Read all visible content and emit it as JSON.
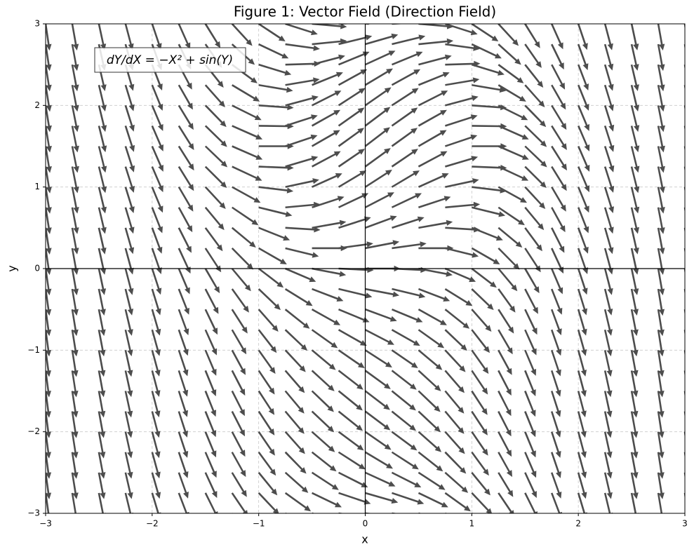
{
  "chart_data": {
    "type": "quiver",
    "title": "Figure 1: Vector Field (Direction Field)",
    "xlabel": "x",
    "ylabel": "y",
    "annotation": "dY/dX = −X² + sin(Y)",
    "color": "#4d4d4d",
    "grid": true,
    "xlim": [
      -3,
      3
    ],
    "ylim": [
      -3,
      3
    ],
    "xticks": [
      {
        "value": -3,
        "label": "−3"
      },
      {
        "value": -2,
        "label": "−2"
      },
      {
        "value": -1,
        "label": "−1"
      },
      0,
      1,
      2,
      3
    ],
    "yticks": [
      {
        "value": -3,
        "label": "−3"
      },
      {
        "value": -2,
        "label": "−2"
      },
      {
        "value": -1,
        "label": "−1"
      },
      0,
      1,
      2,
      3
    ],
    "x": [
      -3,
      -2.75,
      -2.5,
      -2.25,
      -2,
      -1.75,
      -1.5,
      -1.25,
      -1,
      -0.75,
      -0.5,
      -0.25,
      0,
      0.25,
      0.5,
      0.75,
      1,
      1.25,
      1.5,
      1.75,
      2,
      2.25,
      2.5,
      2.75,
      3
    ],
    "y": [
      -3,
      -2.75,
      -2.5,
      -2.25,
      -2,
      -1.75,
      -1.5,
      -1.25,
      -1,
      -0.75,
      -0.5,
      -0.25,
      0,
      0.25,
      0.5,
      0.75,
      1,
      1.25,
      1.5,
      1.75,
      2,
      2.25,
      2.5,
      2.75,
      3
    ],
    "slopes": [
      [
        -9.14,
        -7.7,
        -6.39,
        -5.2,
        -4.14,
        -3.2,
        -2.39,
        -1.7,
        -1.14,
        -0.7,
        -0.39,
        -0.2,
        -0.14,
        -0.2,
        -0.39,
        -0.7,
        -1.14,
        -1.7,
        -2.39,
        -3.2,
        -4.14,
        -5.2,
        -6.39,
        -7.7,
        -9.14
      ],
      [
        -9.38,
        -7.94,
        -6.63,
        -5.44,
        -4.38,
        -3.44,
        -2.63,
        -1.94,
        -1.38,
        -0.94,
        -0.63,
        -0.44,
        -0.38,
        -0.44,
        -0.63,
        -0.94,
        -1.38,
        -1.94,
        -2.63,
        -3.44,
        -4.38,
        -5.44,
        -6.63,
        -7.94,
        -9.38
      ],
      [
        -9.6,
        -8.16,
        -6.85,
        -5.66,
        -4.6,
        -3.66,
        -2.85,
        -2.16,
        -1.6,
        -1.16,
        -0.85,
        -0.66,
        -0.6,
        -0.66,
        -0.85,
        -1.16,
        -1.6,
        -2.16,
        -2.85,
        -3.66,
        -4.6,
        -5.66,
        -6.85,
        -8.16,
        -9.6
      ],
      [
        -9.78,
        -8.34,
        -7.03,
        -5.84,
        -4.78,
        -3.84,
        -3.03,
        -2.34,
        -1.78,
        -1.34,
        -1.03,
        -0.84,
        -0.78,
        -0.84,
        -1.03,
        -1.34,
        -1.78,
        -2.34,
        -3.03,
        -3.84,
        -4.78,
        -5.84,
        -7.03,
        -8.34,
        -9.78
      ],
      [
        -9.91,
        -8.47,
        -7.16,
        -5.97,
        -4.91,
        -3.97,
        -3.16,
        -2.47,
        -1.91,
        -1.47,
        -1.16,
        -0.97,
        -0.91,
        -0.97,
        -1.16,
        -1.47,
        -1.91,
        -2.47,
        -3.16,
        -3.97,
        -4.91,
        -5.97,
        -7.16,
        -8.47,
        -9.91
      ],
      [
        -9.98,
        -8.55,
        -7.23,
        -6.05,
        -4.98,
        -4.05,
        -3.23,
        -2.55,
        -1.98,
        -1.55,
        -1.23,
        -1.05,
        -0.98,
        -1.05,
        -1.23,
        -1.55,
        -1.98,
        -2.55,
        -3.23,
        -4.05,
        -4.98,
        -6.05,
        -7.23,
        -8.55,
        -9.98
      ],
      [
        -10,
        -8.56,
        -7.25,
        -6.06,
        -5,
        -4.06,
        -3.25,
        -2.56,
        -2,
        -1.56,
        -1.25,
        -1.06,
        -1,
        -1.06,
        -1.25,
        -1.56,
        -2,
        -2.56,
        -3.25,
        -4.06,
        -5,
        -6.06,
        -7.25,
        -8.56,
        -10
      ],
      [
        -9.95,
        -8.51,
        -7.2,
        -6.01,
        -4.95,
        -4.01,
        -3.2,
        -2.51,
        -1.95,
        -1.51,
        -1.2,
        -1.01,
        -0.95,
        -1.01,
        -1.2,
        -1.51,
        -1.95,
        -2.51,
        -3.2,
        -4.01,
        -4.95,
        -6.01,
        -7.2,
        -8.51,
        -9.95
      ],
      [
        -9.84,
        -8.4,
        -7.09,
        -5.9,
        -4.84,
        -3.9,
        -3.09,
        -2.4,
        -1.84,
        -1.4,
        -1.09,
        -0.9,
        -0.84,
        -0.9,
        -1.09,
        -1.4,
        -1.84,
        -2.4,
        -3.09,
        -3.9,
        -4.84,
        -5.9,
        -7.09,
        -8.4,
        -9.84
      ],
      [
        -9.68,
        -8.24,
        -6.93,
        -5.74,
        -4.68,
        -3.74,
        -2.93,
        -2.24,
        -1.68,
        -1.24,
        -0.93,
        -0.74,
        -0.68,
        -0.74,
        -0.93,
        -1.24,
        -1.68,
        -2.24,
        -2.93,
        -3.74,
        -4.68,
        -5.74,
        -6.93,
        -8.24,
        -9.68
      ],
      [
        -9.48,
        -8.04,
        -6.73,
        -5.54,
        -4.48,
        -3.54,
        -2.73,
        -2.04,
        -1.48,
        -1.04,
        -0.73,
        -0.54,
        -0.48,
        -0.54,
        -0.73,
        -1.04,
        -1.48,
        -2.04,
        -2.73,
        -3.54,
        -4.48,
        -5.54,
        -6.73,
        -8.04,
        -9.48
      ],
      [
        -9.25,
        -7.81,
        -6.5,
        -5.31,
        -4.25,
        -3.31,
        -2.5,
        -1.81,
        -1.25,
        -0.81,
        -0.5,
        -0.31,
        -0.25,
        -0.31,
        -0.5,
        -0.81,
        -1.25,
        -1.81,
        -2.5,
        -3.31,
        -4.25,
        -5.31,
        -6.5,
        -7.81,
        -9.25
      ],
      [
        -9,
        -7.56,
        -6.25,
        -5.06,
        -4,
        -3.06,
        -2.25,
        -1.56,
        -1,
        -0.56,
        -0.25,
        -0.06,
        0,
        -0.06,
        -0.25,
        -0.56,
        -1,
        -1.56,
        -2.25,
        -3.06,
        -4,
        -5.06,
        -6.25,
        -7.56,
        -9
      ],
      [
        -8.75,
        -7.32,
        -6,
        -4.82,
        -3.75,
        -2.82,
        -2,
        -1.32,
        -0.75,
        -0.32,
        0,
        0.18,
        0.25,
        0.18,
        0,
        -0.32,
        -0.75,
        -1.32,
        -2,
        -2.82,
        -3.75,
        -4.82,
        -6,
        -7.32,
        -8.75
      ],
      [
        -8.52,
        -7.08,
        -5.77,
        -4.58,
        -3.52,
        -2.58,
        -1.77,
        -1.08,
        -0.52,
        -0.08,
        0.23,
        0.42,
        0.48,
        0.42,
        0.23,
        -0.08,
        -0.52,
        -1.08,
        -1.77,
        -2.58,
        -3.52,
        -4.58,
        -5.77,
        -7.08,
        -8.52
      ],
      [
        -8.32,
        -6.88,
        -5.57,
        -4.38,
        -3.32,
        -2.38,
        -1.57,
        -0.88,
        -0.32,
        0.12,
        0.43,
        0.62,
        0.68,
        0.62,
        0.43,
        0.12,
        -0.32,
        -0.88,
        -1.57,
        -2.38,
        -3.32,
        -4.38,
        -5.57,
        -6.88,
        -8.32
      ],
      [
        -8.16,
        -6.72,
        -5.41,
        -4.22,
        -3.16,
        -2.22,
        -1.41,
        -0.72,
        -0.16,
        0.28,
        0.59,
        0.78,
        0.84,
        0.78,
        0.59,
        0.28,
        -0.16,
        -0.72,
        -1.41,
        -2.22,
        -3.16,
        -4.22,
        -5.41,
        -6.72,
        -8.16
      ],
      [
        -8.05,
        -6.61,
        -5.3,
        -4.11,
        -3.05,
        -2.11,
        -1.3,
        -0.61,
        -0.05,
        0.39,
        0.7,
        0.89,
        0.95,
        0.89,
        0.7,
        0.39,
        -0.05,
        -0.61,
        -1.3,
        -2.11,
        -3.05,
        -4.11,
        -5.3,
        -6.61,
        -8.05
      ],
      [
        -8,
        -6.57,
        -5.25,
        -4.07,
        -3,
        -2.07,
        -1.25,
        -0.57,
        0,
        0.44,
        0.75,
        0.94,
        1,
        0.94,
        0.75,
        0.44,
        0,
        -0.57,
        -1.25,
        -2.07,
        -3,
        -4.07,
        -5.25,
        -6.57,
        -8
      ],
      [
        -8.02,
        -6.58,
        -5.27,
        -4.08,
        -3.02,
        -2.08,
        -1.27,
        -0.58,
        -0.02,
        0.42,
        0.73,
        0.92,
        0.98,
        0.92,
        0.73,
        0.42,
        -0.02,
        -0.58,
        -1.27,
        -2.08,
        -3.02,
        -4.08,
        -5.27,
        -6.58,
        -8.02
      ],
      [
        -8.09,
        -6.65,
        -5.34,
        -4.15,
        -3.09,
        -2.15,
        -1.34,
        -0.65,
        -0.09,
        0.35,
        0.66,
        0.85,
        0.91,
        0.85,
        0.66,
        0.35,
        -0.09,
        -0.65,
        -1.34,
        -2.15,
        -3.09,
        -4.15,
        -5.34,
        -6.65,
        -8.09
      ],
      [
        -8.22,
        -6.78,
        -5.47,
        -4.28,
        -3.22,
        -2.28,
        -1.47,
        -0.78,
        -0.22,
        0.22,
        0.53,
        0.72,
        0.78,
        0.72,
        0.53,
        0.22,
        -0.22,
        -0.78,
        -1.47,
        -2.28,
        -3.22,
        -4.28,
        -5.47,
        -6.78,
        -8.22
      ],
      [
        -8.4,
        -6.96,
        -5.65,
        -4.46,
        -3.4,
        -2.46,
        -1.65,
        -0.96,
        -0.4,
        0.04,
        0.35,
        0.54,
        0.6,
        0.54,
        0.35,
        0.04,
        -0.4,
        -0.96,
        -1.65,
        -2.46,
        -3.4,
        -4.46,
        -5.65,
        -6.96,
        -8.4
      ],
      [
        -8.62,
        -7.18,
        -5.87,
        -4.68,
        -3.62,
        -2.68,
        -1.87,
        -1.18,
        -0.62,
        -0.18,
        0.13,
        0.32,
        0.38,
        0.32,
        0.13,
        -0.18,
        -0.62,
        -1.18,
        -1.87,
        -2.68,
        -3.62,
        -4.68,
        -5.87,
        -7.18,
        -8.62
      ],
      [
        -8.86,
        -7.42,
        -6.11,
        -4.92,
        -3.86,
        -2.92,
        -2.11,
        -1.42,
        -0.86,
        -0.42,
        -0.11,
        0.08,
        0.14,
        0.08,
        -0.11,
        -0.42,
        -0.86,
        -1.42,
        -2.11,
        -2.92,
        -3.86,
        -4.92,
        -6.11,
        -7.42,
        -8.86
      ]
    ]
  }
}
